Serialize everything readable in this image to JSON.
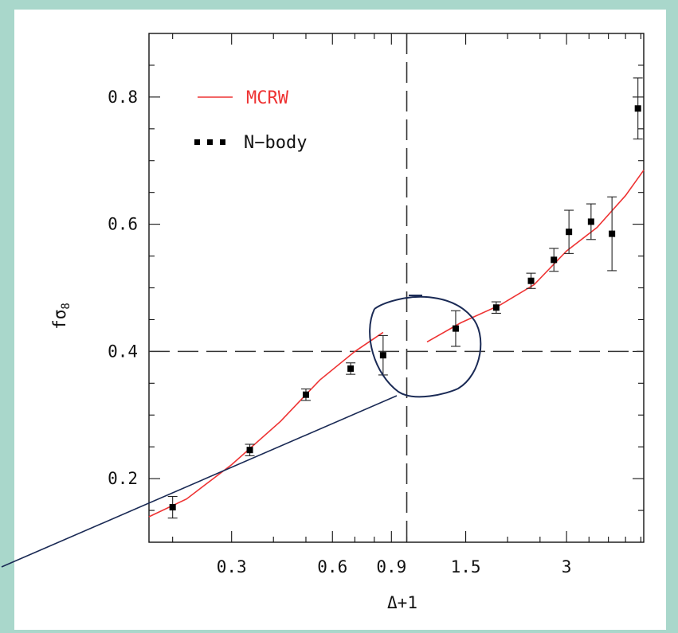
{
  "colors": {
    "background": "#a9d7cb",
    "panel": "#ffffff",
    "axis": "#111111",
    "mcrw_curve": "#ee3333",
    "nbody_points": "#000000",
    "annotation": "#1a2a55"
  },
  "chart_data": {
    "type": "scatter",
    "x_scale": "log",
    "xlim": [
      0.17,
      5.1
    ],
    "ylim": [
      0.1,
      0.9
    ],
    "xlabel": "Δ+1",
    "ylabel": "fσ",
    "ylabel_sub": "8",
    "x_tick_labels": [
      {
        "value": 0.3,
        "label": "0.3"
      },
      {
        "value": 0.6,
        "label": "0.6"
      },
      {
        "value": 0.9,
        "label": "0.9"
      },
      {
        "value": 1.5,
        "label": "1.5"
      },
      {
        "value": 3,
        "label": "3"
      }
    ],
    "y_tick_labels": [
      {
        "value": 0.2,
        "label": "0.2"
      },
      {
        "value": 0.4,
        "label": "0.4"
      },
      {
        "value": 0.6,
        "label": "0.6"
      },
      {
        "value": 0.8,
        "label": "0.8"
      }
    ],
    "y_minor_step": 0.05,
    "reference_lines": {
      "x": 1.0,
      "y": 0.4
    },
    "legend": {
      "placement": "top-left",
      "entries": [
        {
          "label": "MCRW",
          "style": "line",
          "color": "#ee3333"
        },
        {
          "label": "N−body",
          "style": "points",
          "color": "#000000"
        }
      ]
    },
    "series": [
      {
        "name": "MCRW",
        "style": "line",
        "segments": [
          {
            "x": [
              0.17,
              0.22,
              0.3,
              0.42,
              0.55,
              0.7,
              0.85
            ],
            "y": [
              0.14,
              0.168,
              0.222,
              0.29,
              0.355,
              0.4,
              0.43
            ]
          },
          {
            "x": [
              1.15,
              1.45,
              1.9,
              2.4,
              3.0,
              3.7,
              4.5,
              5.1
            ],
            "y": [
              0.415,
              0.445,
              0.473,
              0.505,
              0.558,
              0.595,
              0.645,
              0.685
            ]
          }
        ]
      },
      {
        "name": "N−body",
        "style": "points",
        "x": [
          0.2,
          0.34,
          0.5,
          0.68,
          0.85,
          1.4,
          1.85,
          2.35,
          2.75,
          3.05,
          3.55,
          4.1,
          4.9
        ],
        "y": [
          0.155,
          0.245,
          0.332,
          0.373,
          0.394,
          0.436,
          0.469,
          0.511,
          0.544,
          0.588,
          0.604,
          0.585,
          0.782
        ],
        "err": [
          0.017,
          0.009,
          0.009,
          0.009,
          0.031,
          0.028,
          0.009,
          0.012,
          0.018,
          0.034,
          0.028,
          0.058,
          0.048
        ]
      }
    ]
  }
}
